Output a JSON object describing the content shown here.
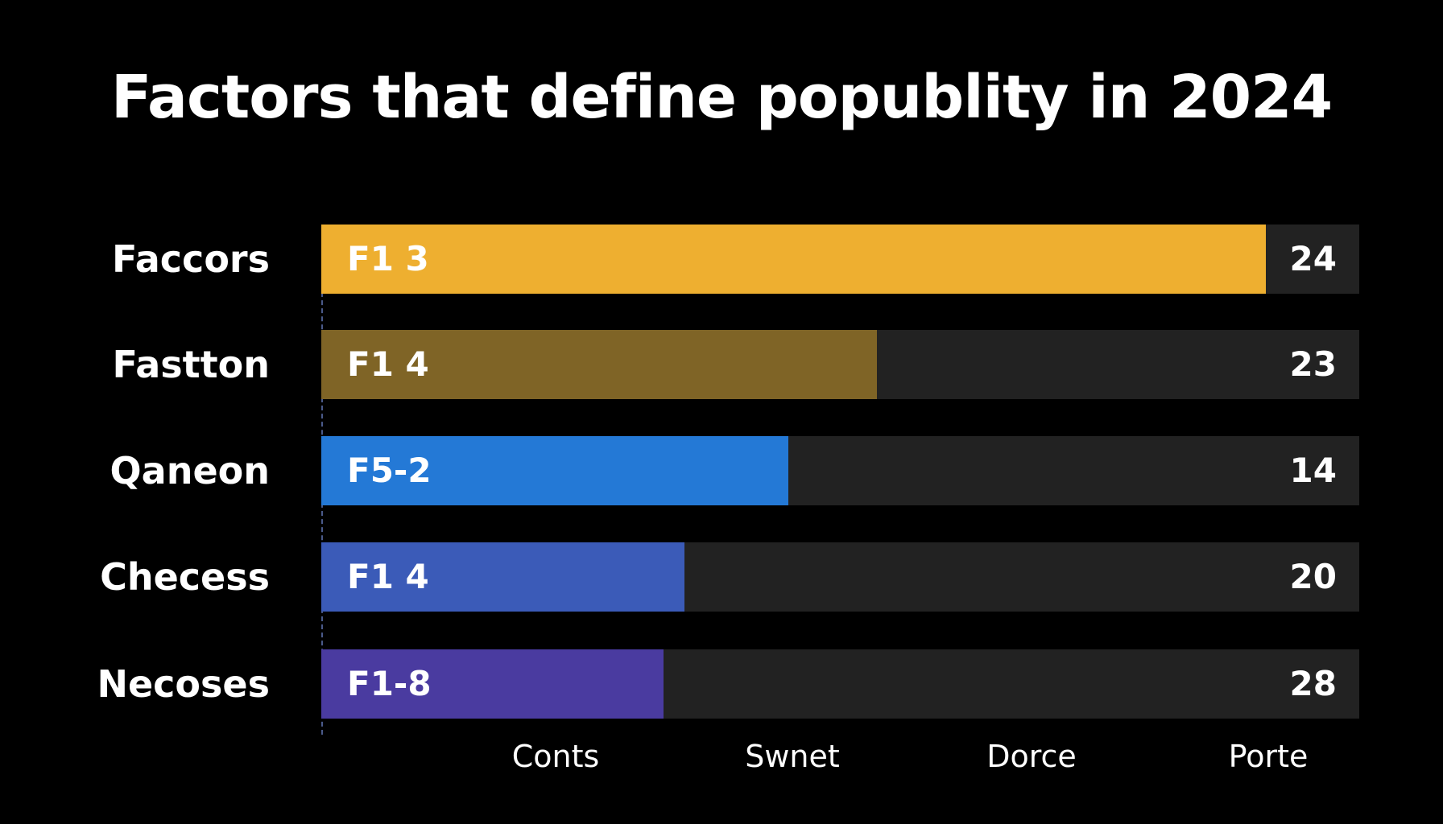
{
  "chart_data": {
    "type": "bar",
    "orientation": "horizontal",
    "title": "Factors that define popublity in 2024",
    "categories": [
      "Faccors",
      "Fastton",
      "Qaneon",
      "Checess",
      "Necoses"
    ],
    "bar_labels": [
      "F1 3",
      "F1 4",
      "F5-2",
      "F1 4",
      "F1-8"
    ],
    "value_labels": [
      "24",
      "23",
      "14",
      "20",
      "28"
    ],
    "fill_fraction": [
      0.91,
      0.535,
      0.45,
      0.35,
      0.33
    ],
    "colors": [
      "#EEAF30",
      "#7F6426",
      "#2479D6",
      "#3B5BB8",
      "#4A3BA0"
    ],
    "track_color": "#222222",
    "x_tick_labels": [
      "Conts",
      "Swnet",
      "Dorce",
      "Porte"
    ],
    "axis_marker_icon": "warning-triangle-icon",
    "axis_marker_color": "#F2C233",
    "grid": false,
    "legend": "none"
  }
}
